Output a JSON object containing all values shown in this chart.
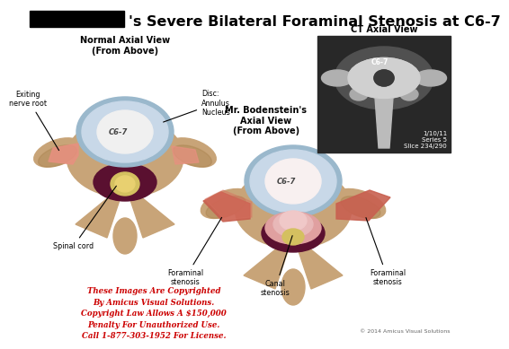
{
  "title": "'s Severe Bilateral Foraminal Stenosis at C6-7",
  "bg_color": "#ffffff",
  "title_fontsize": 11.5,
  "left_diagram_title": "Normal Axial View\n(From Above)",
  "right_diagram_title": "Mr. Bodenstein's\nAxial View\n(From Above)",
  "ct_title": "CT Axial View",
  "ct_sub": "1/10/11\nSeries 5\nSlice 234/290",
  "copyright_text": "These Images Are Copyrighted\nBy Amicus Visual Solutions.\nCopyright Law Allows A $150,000\nPenalty For Unauthorized Use.\nCall 1-877-303-1952 For License.",
  "copyright_color": "#cc0000",
  "watermark": "© 2014 Amicus Visual Solutions",
  "spine_color": "#c8a478",
  "spine_shadow": "#a07840",
  "disc_outer_color": "#9ab8cc",
  "disc_inner_color": "#e0e8ef",
  "disc_inner2": "#f0f0f0",
  "canal_color": "#5a1030",
  "cord_color": "#d4c060",
  "nerve_color": "#c86050",
  "nerve_light": "#e89080",
  "herniation_color": "#e8b0b0",
  "label_fontsize": 5.8,
  "ct_bg": "#282828"
}
